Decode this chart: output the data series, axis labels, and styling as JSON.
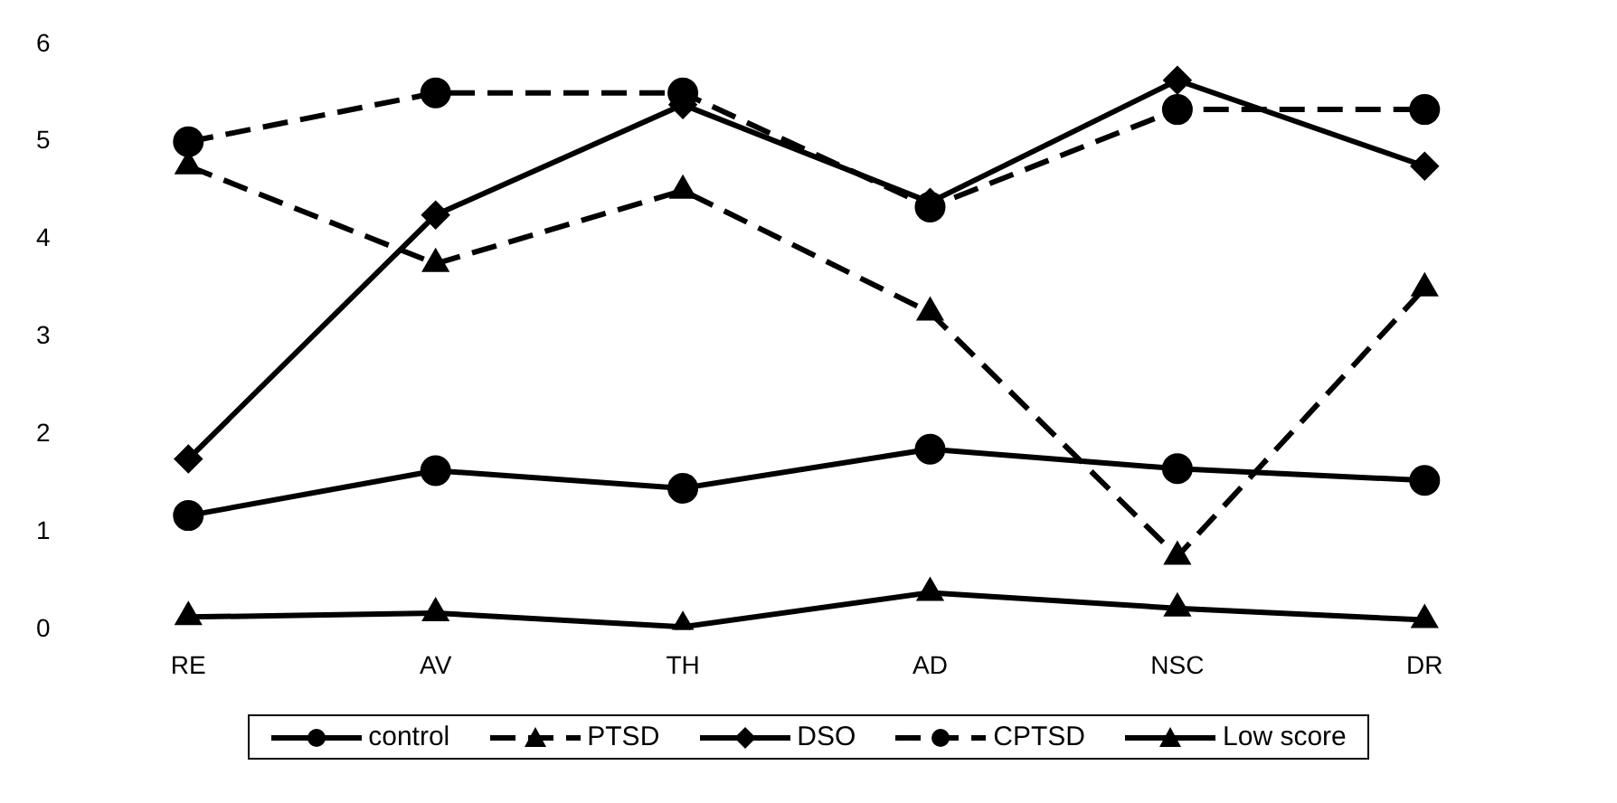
{
  "chart_data": {
    "type": "line",
    "categories": [
      "RE",
      "AV",
      "TH",
      "AD",
      "NSC",
      "DR"
    ],
    "ylim": [
      0,
      6
    ],
    "yticks": [
      0,
      1,
      2,
      3,
      4,
      5,
      6
    ],
    "grid": false,
    "legend": "bottom",
    "series": [
      {
        "name": "control",
        "color": "#000000",
        "marker": "circle",
        "line_style": "solid",
        "values": [
          1.17,
          1.63,
          1.45,
          1.85,
          1.65,
          1.53
        ]
      },
      {
        "name": "PTSD",
        "color": "#000000",
        "marker": "triangle",
        "line_style": "dashed",
        "values": [
          4.75,
          3.75,
          4.5,
          3.25,
          0.75,
          3.5
        ]
      },
      {
        "name": "DSO",
        "color": "#000000",
        "marker": "diamond",
        "line_style": "solid",
        "values": [
          1.75,
          4.25,
          5.38,
          4.38,
          5.63,
          4.75
        ]
      },
      {
        "name": "CPTSD",
        "color": "#000000",
        "marker": "circle",
        "line_style": "dashed",
        "values": [
          5.0,
          5.5,
          5.5,
          4.33,
          5.33,
          5.33
        ]
      },
      {
        "name": "Low score",
        "color": "#000000",
        "marker": "triangle",
        "line_style": "solid",
        "values": [
          0.13,
          0.17,
          0.03,
          0.38,
          0.22,
          0.1
        ]
      }
    ]
  }
}
